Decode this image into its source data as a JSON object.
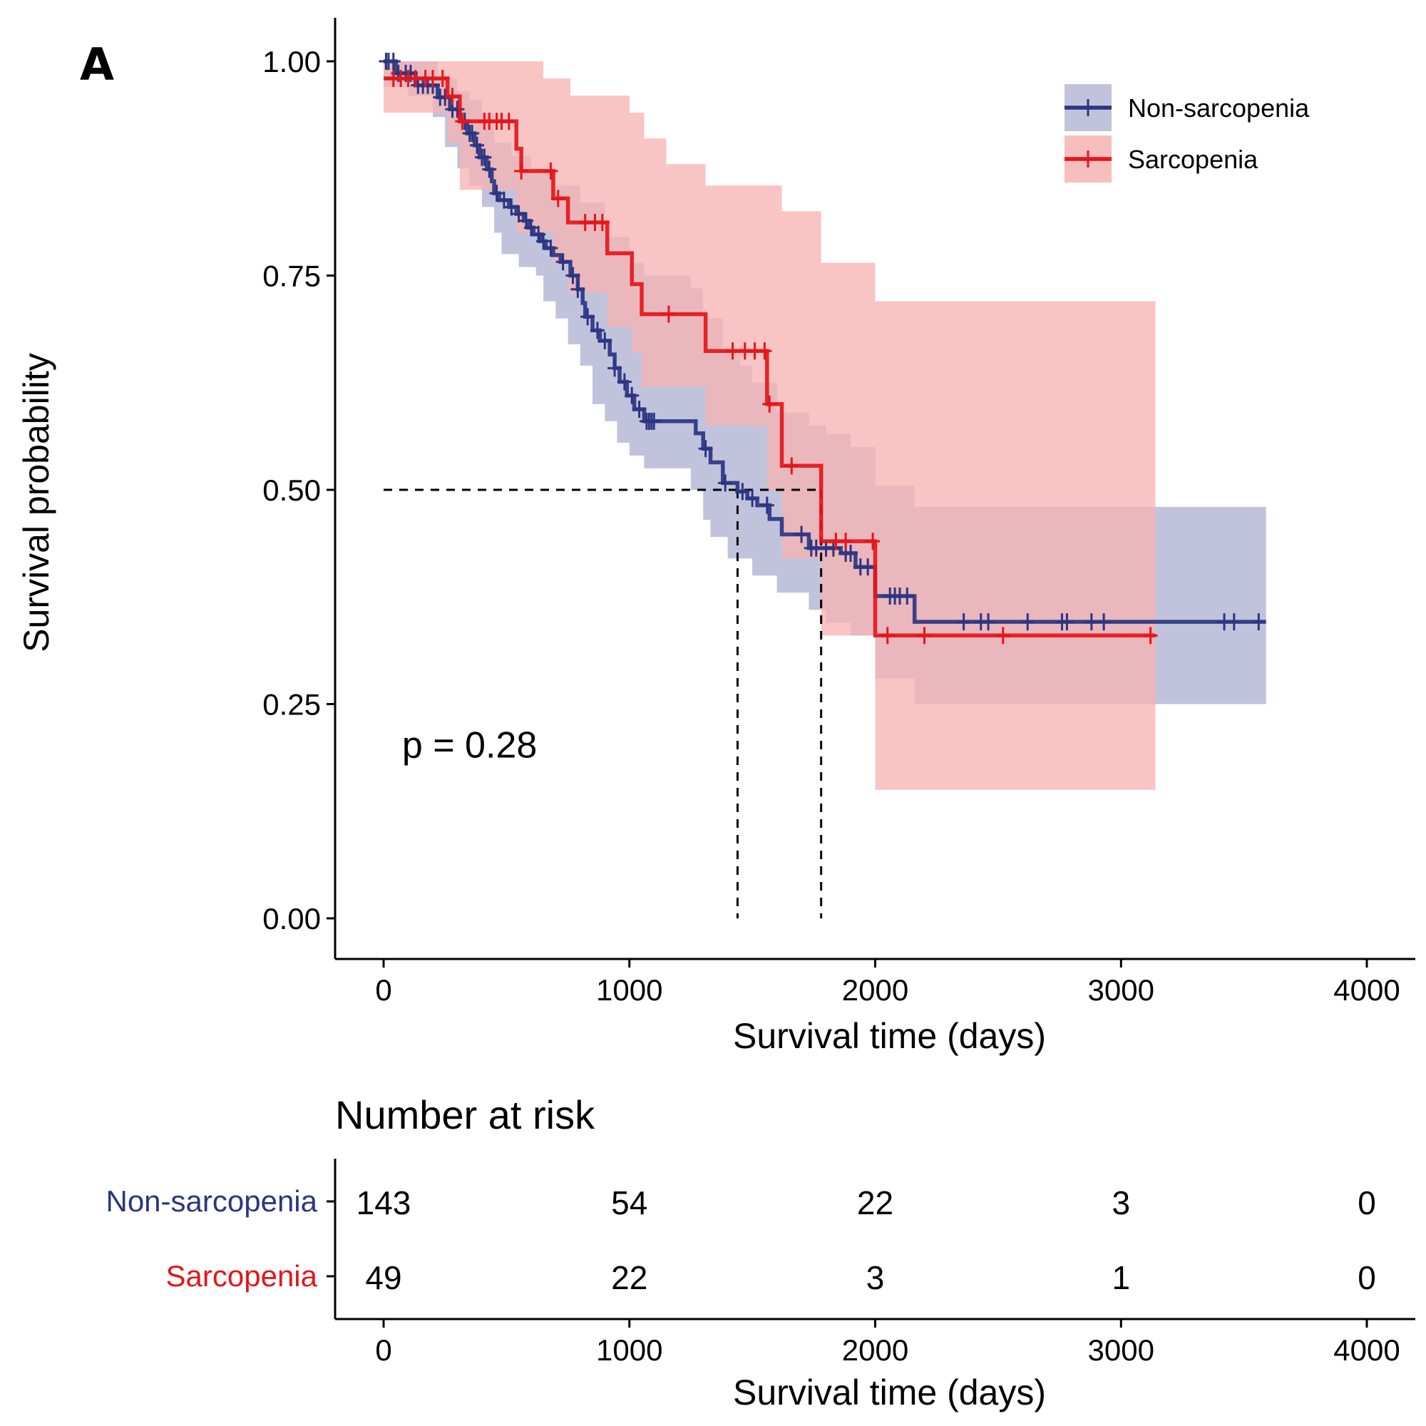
{
  "panel_label": "A",
  "chart_data": [
    {
      "type": "line",
      "subtype": "kaplan-meier",
      "xlabel": "Survival time (days)",
      "ylabel": "Survival probability",
      "xlim": [
        -200,
        4200
      ],
      "ylim": [
        -0.05,
        1.05
      ],
      "x_ticks": [
        0,
        1000,
        2000,
        3000,
        4000
      ],
      "x_tick_labels": [
        "0",
        "1000",
        "2000",
        "3000",
        "4000"
      ],
      "y_ticks": [
        0,
        0.25,
        0.5,
        0.75,
        1.0
      ],
      "y_tick_labels": [
        "0.00",
        "0.25",
        "0.50",
        "0.75",
        "1.00"
      ],
      "grid": false,
      "legend_position": "top-right",
      "annotation": "p = 0.28",
      "median_survival": [
        1440,
        1780
      ],
      "series": [
        {
          "name": "Non-sarcopenia",
          "color": "#2b3582",
          "band_color": "#c1c3dc",
          "steps": [
            [
              0,
              1.0
            ],
            [
              50,
              0.986
            ],
            [
              130,
              0.972
            ],
            [
              220,
              0.958
            ],
            [
              270,
              0.944
            ],
            [
              310,
              0.93
            ],
            [
              340,
              0.916
            ],
            [
              370,
              0.902
            ],
            [
              390,
              0.888
            ],
            [
              420,
              0.874
            ],
            [
              440,
              0.86
            ],
            [
              450,
              0.846
            ],
            [
              470,
              0.838
            ],
            [
              510,
              0.83
            ],
            [
              540,
              0.822
            ],
            [
              570,
              0.814
            ],
            [
              590,
              0.806
            ],
            [
              610,
              0.798
            ],
            [
              640,
              0.79
            ],
            [
              660,
              0.782
            ],
            [
              690,
              0.774
            ],
            [
              720,
              0.766
            ],
            [
              760,
              0.75
            ],
            [
              790,
              0.734
            ],
            [
              810,
              0.718
            ],
            [
              820,
              0.702
            ],
            [
              850,
              0.686
            ],
            [
              880,
              0.674
            ],
            [
              920,
              0.658
            ],
            [
              940,
              0.642
            ],
            [
              960,
              0.626
            ],
            [
              990,
              0.61
            ],
            [
              1020,
              0.594
            ],
            [
              1060,
              0.58
            ],
            [
              1270,
              0.566
            ],
            [
              1300,
              0.548
            ],
            [
              1330,
              0.532
            ],
            [
              1380,
              0.508
            ],
            [
              1440,
              0.498
            ],
            [
              1480,
              0.49
            ],
            [
              1520,
              0.482
            ],
            [
              1570,
              0.466
            ],
            [
              1620,
              0.448
            ],
            [
              1730,
              0.432
            ],
            [
              1780,
              0.432
            ],
            [
              1860,
              0.426
            ],
            [
              1920,
              0.41
            ],
            [
              2000,
              0.376
            ],
            [
              2160,
              0.346
            ],
            [
              3590,
              0.346
            ]
          ],
          "ci_upper": [
            [
              0,
              1.0
            ],
            [
              150,
              1.0
            ],
            [
              220,
              0.98
            ],
            [
              300,
              0.965
            ],
            [
              350,
              0.955
            ],
            [
              400,
              0.94
            ],
            [
              450,
              0.905
            ],
            [
              520,
              0.89
            ],
            [
              600,
              0.875
            ],
            [
              700,
              0.855
            ],
            [
              800,
              0.835
            ],
            [
              900,
              0.795
            ],
            [
              1000,
              0.765
            ],
            [
              1060,
              0.75
            ],
            [
              1250,
              0.735
            ],
            [
              1300,
              0.7
            ],
            [
              1380,
              0.66
            ],
            [
              1450,
              0.645
            ],
            [
              1500,
              0.625
            ],
            [
              1600,
              0.59
            ],
            [
              1730,
              0.575
            ],
            [
              1800,
              0.565
            ],
            [
              1900,
              0.55
            ],
            [
              2000,
              0.505
            ],
            [
              2160,
              0.48
            ],
            [
              3590,
              0.48
            ]
          ],
          "ci_lower": [
            [
              0,
              0.97
            ],
            [
              100,
              0.96
            ],
            [
              200,
              0.935
            ],
            [
              250,
              0.9
            ],
            [
              300,
              0.875
            ],
            [
              350,
              0.855
            ],
            [
              400,
              0.83
            ],
            [
              450,
              0.8
            ],
            [
              480,
              0.775
            ],
            [
              550,
              0.76
            ],
            [
              620,
              0.75
            ],
            [
              650,
              0.72
            ],
            [
              700,
              0.7
            ],
            [
              750,
              0.67
            ],
            [
              800,
              0.645
            ],
            [
              850,
              0.6
            ],
            [
              900,
              0.58
            ],
            [
              950,
              0.555
            ],
            [
              1000,
              0.54
            ],
            [
              1060,
              0.525
            ],
            [
              1250,
              0.5
            ],
            [
              1300,
              0.465
            ],
            [
              1330,
              0.445
            ],
            [
              1400,
              0.42
            ],
            [
              1500,
              0.4
            ],
            [
              1600,
              0.38
            ],
            [
              1730,
              0.36
            ],
            [
              1800,
              0.345
            ],
            [
              1900,
              0.33
            ],
            [
              2000,
              0.28
            ],
            [
              2160,
              0.25
            ],
            [
              3590,
              0.25
            ]
          ],
          "censor_x": [
            10,
            20,
            40,
            60,
            90,
            110,
            140,
            160,
            180,
            200,
            230,
            250,
            280,
            300,
            330,
            350,
            360,
            380,
            400,
            410,
            430,
            460,
            490,
            520,
            550,
            580,
            600,
            630,
            650,
            680,
            730,
            770,
            790,
            830,
            870,
            900,
            940,
            980,
            1010,
            1040,
            1070,
            1080,
            1090,
            1100,
            1310,
            1390,
            1460,
            1500,
            1560,
            1700,
            1740,
            1760,
            1800,
            1830,
            1880,
            1900,
            1940,
            1970,
            2060,
            2080,
            2100,
            2130,
            2360,
            2430,
            2460,
            2620,
            2760,
            2780,
            2880,
            2930,
            3420,
            3460,
            3560
          ]
        },
        {
          "name": "Sarcopenia",
          "color": "#e3161b",
          "band_color": "#f6b3b3",
          "steps": [
            [
              0,
              0.98
            ],
            [
              260,
              0.959
            ],
            [
              310,
              0.93
            ],
            [
              540,
              0.898
            ],
            [
              560,
              0.872
            ],
            [
              690,
              0.84
            ],
            [
              750,
              0.812
            ],
            [
              910,
              0.776
            ],
            [
              1010,
              0.74
            ],
            [
              1050,
              0.705
            ],
            [
              1310,
              0.662
            ],
            [
              1560,
              0.6
            ],
            [
              1620,
              0.528
            ],
            [
              1780,
              0.44
            ],
            [
              2000,
              0.33
            ],
            [
              3140,
              0.33
            ]
          ],
          "ci_upper": [
            [
              0,
              1.0
            ],
            [
              560,
              1.0
            ],
            [
              650,
              0.98
            ],
            [
              760,
              0.96
            ],
            [
              1000,
              0.94
            ],
            [
              1060,
              0.91
            ],
            [
              1150,
              0.88
            ],
            [
              1310,
              0.855
            ],
            [
              1620,
              0.825
            ],
            [
              1780,
              0.765
            ],
            [
              2000,
              0.72
            ],
            [
              3140,
              0.72
            ]
          ],
          "ci_lower": [
            [
              0,
              0.94
            ],
            [
              260,
              0.905
            ],
            [
              310,
              0.85
            ],
            [
              540,
              0.8
            ],
            [
              690,
              0.765
            ],
            [
              750,
              0.73
            ],
            [
              910,
              0.69
            ],
            [
              1010,
              0.66
            ],
            [
              1050,
              0.62
            ],
            [
              1310,
              0.575
            ],
            [
              1560,
              0.5
            ],
            [
              1620,
              0.42
            ],
            [
              1780,
              0.33
            ],
            [
              2000,
              0.15
            ],
            [
              3140,
              0.15
            ]
          ],
          "censor_x": [
            40,
            70,
            100,
            130,
            170,
            200,
            240,
            280,
            320,
            410,
            430,
            460,
            480,
            510,
            560,
            680,
            710,
            820,
            860,
            890,
            1160,
            1420,
            1470,
            1510,
            1550,
            1570,
            1660,
            1840,
            1880,
            1990,
            2050,
            2200,
            2520,
            3120
          ]
        }
      ]
    },
    {
      "type": "table",
      "title": "Number at risk",
      "xlabel": "Survival time (days)",
      "xlim": [
        -200,
        4200
      ],
      "x_ticks": [
        0,
        1000,
        2000,
        3000,
        4000
      ],
      "x_tick_labels": [
        "0",
        "1000",
        "2000",
        "3000",
        "4000"
      ],
      "rows": [
        {
          "name": "Non-sarcopenia",
          "color": "#2b3582",
          "values": [
            "143",
            "54",
            "22",
            "3",
            "0"
          ]
        },
        {
          "name": "Sarcopenia",
          "color": "#e3161b",
          "values": [
            "49",
            "22",
            "3",
            "1",
            "0"
          ]
        }
      ]
    }
  ]
}
